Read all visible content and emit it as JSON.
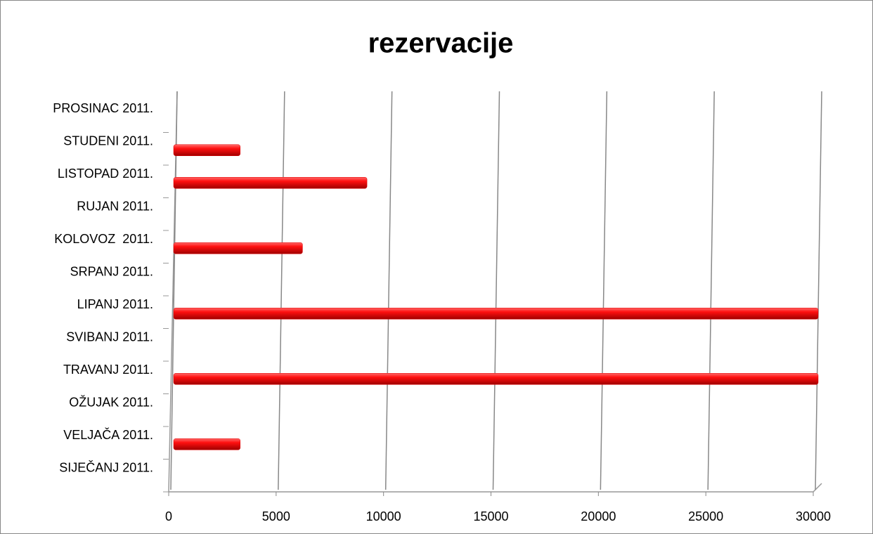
{
  "chart_data": {
    "type": "bar",
    "orientation": "horizontal",
    "title": "rezervacije",
    "categories": [
      "SIJEČANJ 2011.",
      "VELJAČA 2011.",
      "OŽUJAK 2011.",
      "TRAVANJ 2011.",
      "SVIBANJ 2011.",
      "LIPANJ 2011.",
      "SRPANJ 2011.",
      "KOLOVOZ  2011.",
      "RUJAN 2011.",
      "LISTOPAD 2011.",
      "STUDENI 2011.",
      "PROSINAC 2011."
    ],
    "values": [
      0,
      3100,
      0,
      30000,
      0,
      30000,
      0,
      6000,
      0,
      9000,
      3100,
      0
    ],
    "color": "#e00000",
    "xlim": [
      0,
      30000
    ],
    "xticks": [
      0,
      5000,
      10000,
      15000,
      20000,
      25000,
      30000
    ],
    "grid": true
  }
}
